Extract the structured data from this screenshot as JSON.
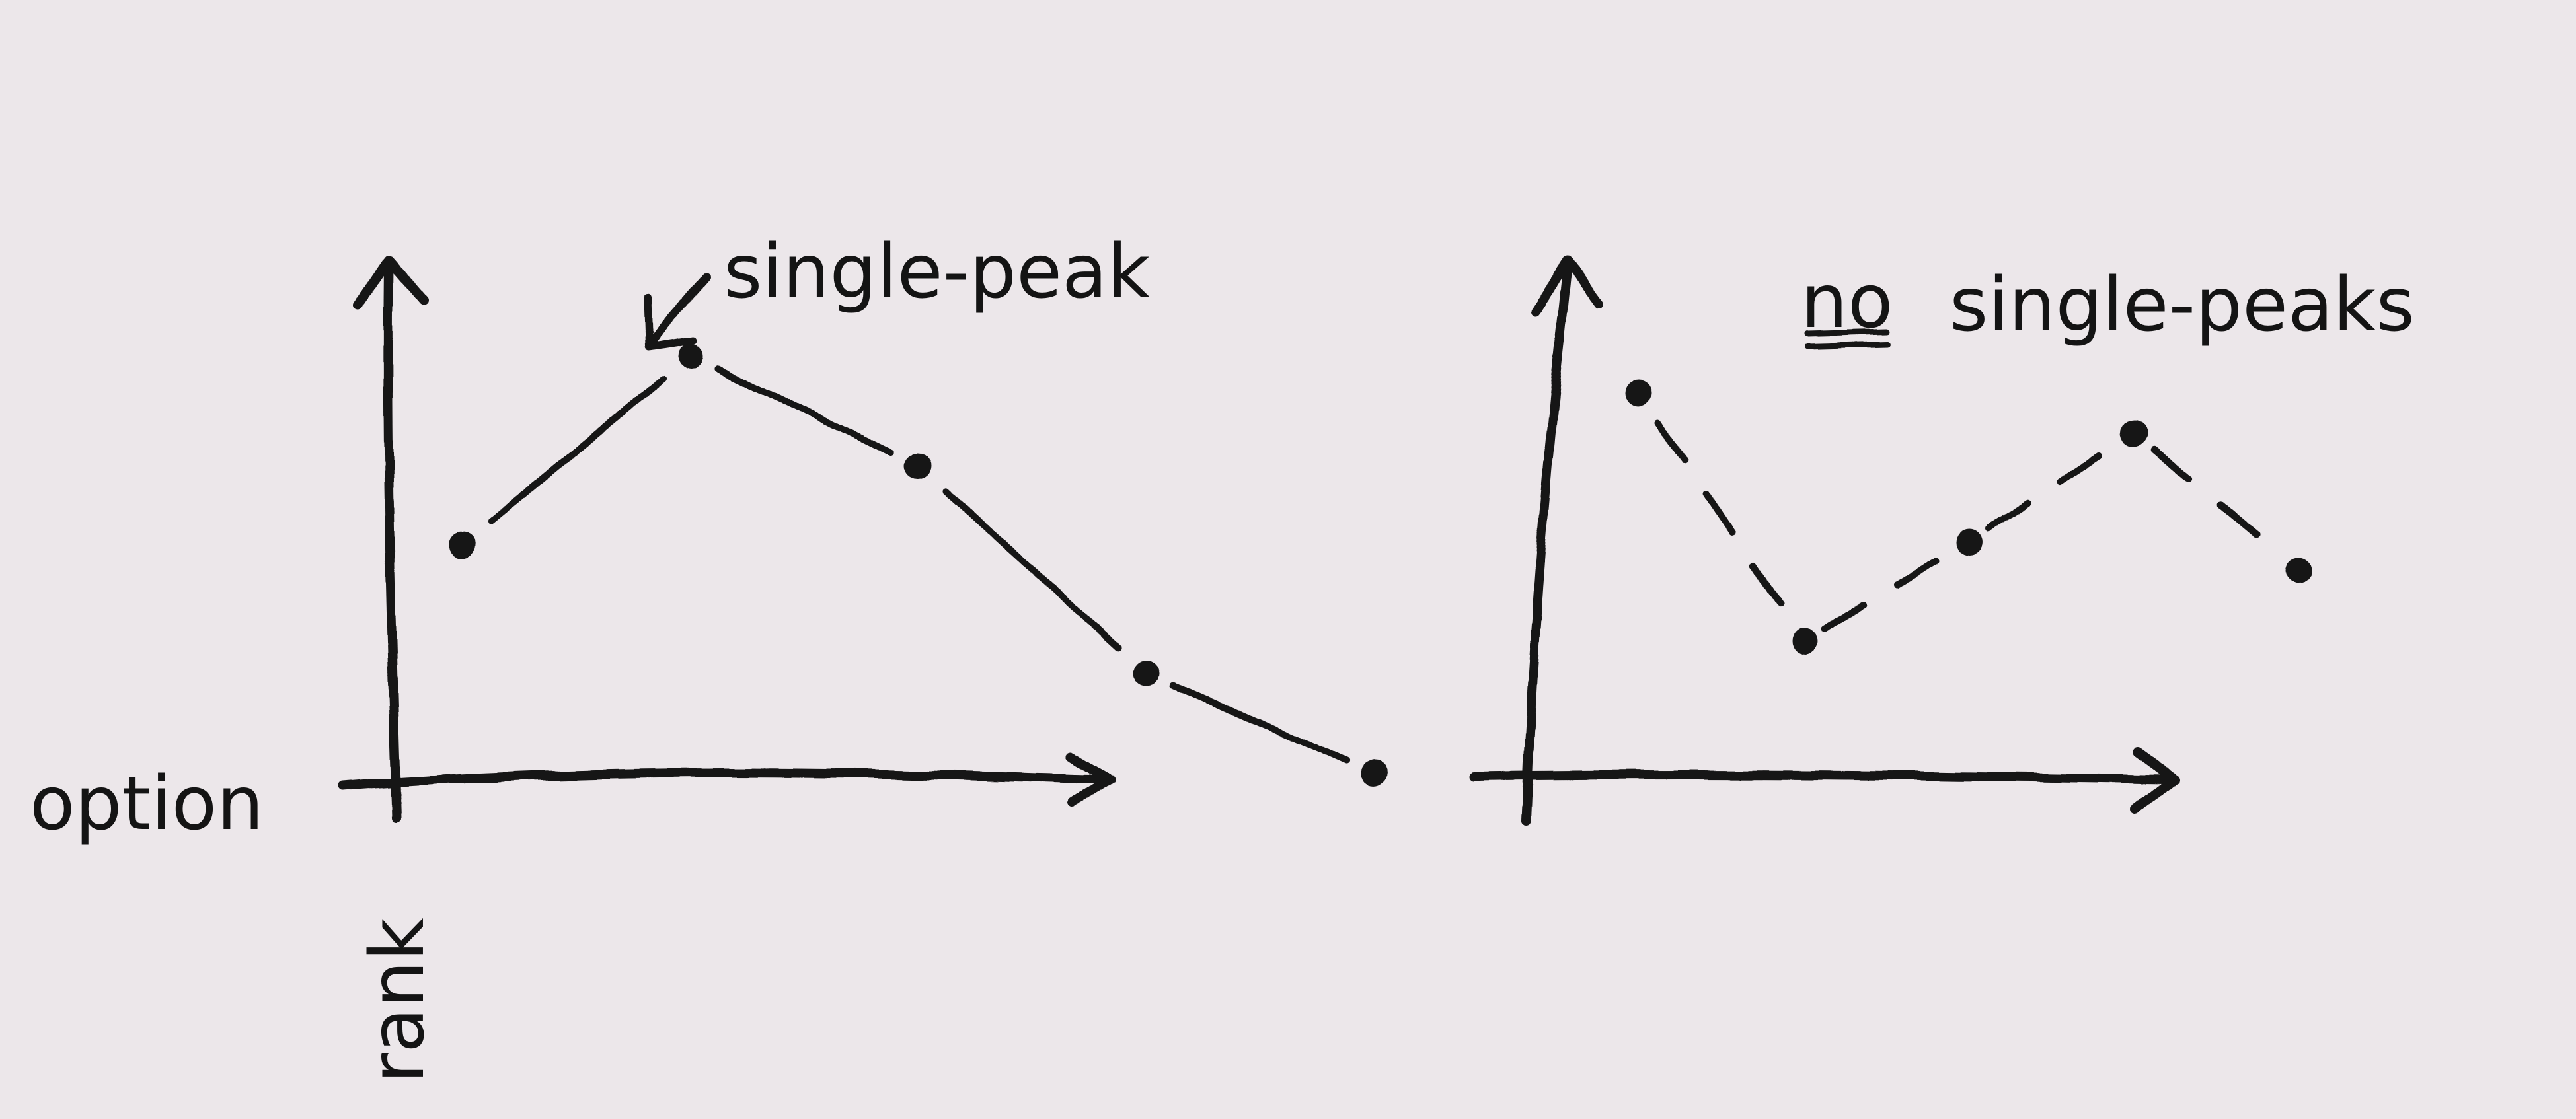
{
  "colors": {
    "paper": "#ece7ea",
    "ink": "#141414"
  },
  "chart_data": [
    {
      "type": "line",
      "title": "",
      "annotation": "single-peak",
      "xlabel": "option",
      "ylabel": "rank",
      "points": [
        {
          "x": 1,
          "y": 3.1
        },
        {
          "x": 2,
          "y": 5.0
        },
        {
          "x": 3,
          "y": 3.9
        },
        {
          "x": 4,
          "y": 1.8
        },
        {
          "x": 5,
          "y": 0.8
        }
      ],
      "grid": false,
      "line_style": "solid"
    },
    {
      "type": "line",
      "title": "",
      "annotation_underlined": "no",
      "annotation_rest": "single-peaks",
      "xlabel": "",
      "ylabel": "",
      "points": [
        {
          "x": 1,
          "y": 4.0
        },
        {
          "x": 2,
          "y": 1.5
        },
        {
          "x": 3,
          "y": 2.5
        },
        {
          "x": 4,
          "y": 3.6
        },
        {
          "x": 5,
          "y": 2.2
        }
      ],
      "grid": false,
      "line_style": "dashed"
    }
  ]
}
